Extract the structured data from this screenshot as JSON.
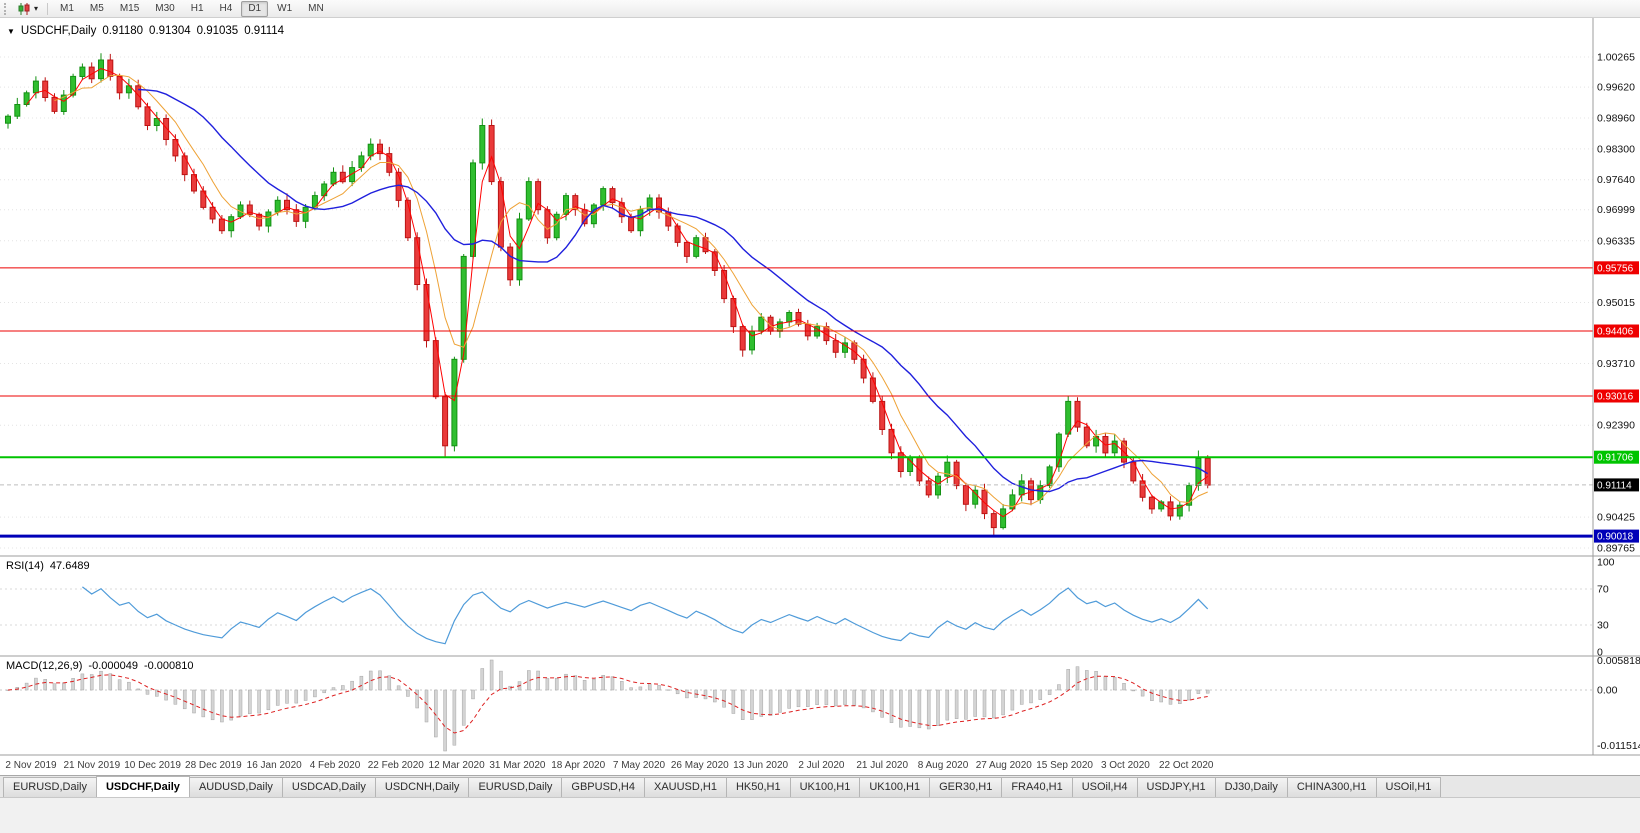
{
  "toolbar": {
    "dropdown_caret": "▾",
    "timeframes": [
      "M1",
      "M5",
      "M15",
      "M30",
      "H1",
      "H4",
      "D1",
      "W1",
      "MN"
    ],
    "active_timeframe": "D1"
  },
  "chart": {
    "title": {
      "collapse_icon": "▼",
      "symbol": "USDCHF,Daily",
      "open": "0.91180",
      "high": "0.91304",
      "low": "0.91035",
      "close": "0.91114"
    },
    "price_axis_ticks": [
      {
        "label": "1.00265",
        "price": 1.00265
      },
      {
        "label": "0.99620",
        "price": 0.9962
      },
      {
        "label": "0.98960",
        "price": 0.9896
      },
      {
        "label": "0.98300",
        "price": 0.983
      },
      {
        "label": "0.97640",
        "price": 0.9764
      },
      {
        "label": "0.96999",
        "price": 0.96999
      },
      {
        "label": "0.96335",
        "price": 0.96335
      },
      {
        "label": "0.95015",
        "price": 0.95015
      },
      {
        "label": "0.93710",
        "price": 0.9371
      },
      {
        "label": "0.92390",
        "price": 0.9239
      },
      {
        "label": "0.90425",
        "price": 0.90425
      },
      {
        "label": "0.89765",
        "price": 0.89765
      }
    ],
    "levels": [
      {
        "label": "0.95756",
        "price": 0.95756,
        "color": "#ee0000",
        "thickness": 1
      },
      {
        "label": "0.94406",
        "price": 0.94406,
        "color": "#ee0000",
        "thickness": 1
      },
      {
        "label": "0.93016",
        "price": 0.93016,
        "color": "#ee0000",
        "thickness": 1
      },
      {
        "label": "0.91706",
        "price": 0.91706,
        "color": "#00c400",
        "thickness": 2
      },
      {
        "label": "0.90018",
        "price": 0.90018,
        "color": "#0000b8",
        "thickness": 3
      }
    ],
    "current_price": {
      "label": "0.91114",
      "price": 0.91114
    },
    "date_labels": [
      "2 Nov 2019",
      "21 Nov 2019",
      "10 Dec 2019",
      "28 Dec 2019",
      "16 Jan 2020",
      "4 Feb 2020",
      "22 Feb 2020",
      "12 Mar 2020",
      "31 Mar 2020",
      "18 Apr 2020",
      "7 May 2020",
      "26 May 2020",
      "13 Jun 2020",
      "2 Jul 2020",
      "21 Jul 2020",
      "8 Aug 2020",
      "27 Aug 2020",
      "15 Sep 2020",
      "3 Oct 2020",
      "22 Oct 2020"
    ]
  },
  "indicators": {
    "rsi": {
      "name": "RSI(14)",
      "value": "47.6489",
      "axis_labels": [
        "100",
        "70",
        "30",
        "0"
      ],
      "axis_values": [
        100,
        70,
        30,
        0
      ],
      "line_color": "#4f9bd9"
    },
    "macd": {
      "name": "MACD(12,26,9)",
      "value_main": "-0.000049",
      "value_signal": "-0.000810",
      "axis_labels": [
        "0.005818",
        "0.00",
        "-0.011514"
      ],
      "axis_values": [
        0.005818,
        0,
        -0.011514
      ]
    }
  },
  "tabs": {
    "active_index": 1,
    "items": [
      "EURUSD,Daily",
      "USDCHF,Daily",
      "AUDUSD,Daily",
      "USDCAD,Daily",
      "USDCNH,Daily",
      "EURUSD,Daily",
      "GBPUSD,H4",
      "XAUUSD,H1",
      "HK50,H1",
      "UK100,H1",
      "UK100,H1",
      "GER30,H1",
      "FRA40,H1",
      "USOil,H4",
      "USDJPY,H1",
      "DJ30,Daily",
      "CHINA300,H1",
      "USOil,H1"
    ]
  },
  "chart_data": {
    "type": "candlestick",
    "symbol": "USDCHF",
    "period": "Daily",
    "ohlc": {
      "open": 0.9118,
      "high": 0.91304,
      "low": 0.91035,
      "close": 0.91114
    },
    "x_range": [
      "2 Nov 2019",
      "22 Oct 2020"
    ],
    "y_axis_range": [
      0.89765,
      1.00265
    ],
    "horizontal_levels": [
      0.95756,
      0.94406,
      0.93016,
      0.91706,
      0.90018
    ],
    "moving_average_colors": [
      "#ff0000",
      "#eea236",
      "#2020dd"
    ],
    "closes": [
      0.99,
      0.9925,
      0.995,
      0.9975,
      0.994,
      0.991,
      0.9945,
      0.9985,
      1.0005,
      0.998,
      1.002,
      0.9985,
      0.995,
      0.9965,
      0.992,
      0.988,
      0.9895,
      0.985,
      0.9815,
      0.9775,
      0.974,
      0.9705,
      0.968,
      0.9655,
      0.9685,
      0.971,
      0.969,
      0.9665,
      0.9695,
      0.972,
      0.97,
      0.9675,
      0.9705,
      0.973,
      0.9755,
      0.978,
      0.976,
      0.979,
      0.9815,
      0.984,
      0.982,
      0.978,
      0.972,
      0.964,
      0.954,
      0.942,
      0.93,
      0.9195,
      0.938,
      0.96,
      0.98,
      0.988,
      0.976,
      0.962,
      0.955,
      0.968,
      0.976,
      0.97,
      0.964,
      0.969,
      0.973,
      0.97,
      0.967,
      0.971,
      0.9745,
      0.9715,
      0.9685,
      0.9655,
      0.97,
      0.9725,
      0.9695,
      0.9665,
      0.963,
      0.96,
      0.964,
      0.961,
      0.957,
      0.951,
      0.945,
      0.94,
      0.944,
      0.947,
      0.944,
      0.946,
      0.948,
      0.9455,
      0.943,
      0.945,
      0.942,
      0.9395,
      0.9415,
      0.938,
      0.934,
      0.929,
      0.923,
      0.918,
      0.914,
      0.917,
      0.912,
      0.909,
      0.913,
      0.916,
      0.911,
      0.907,
      0.91,
      0.905,
      0.902,
      0.906,
      0.909,
      0.912,
      0.908,
      0.911,
      0.915,
      0.922,
      0.929,
      0.9235,
      0.9195,
      0.9215,
      0.918,
      0.9205,
      0.916,
      0.912,
      0.9085,
      0.906,
      0.9075,
      0.9045,
      0.9068,
      0.911,
      0.9168,
      0.9111
    ],
    "wick_high_overrides": {
      "10": 1.0028,
      "51": 0.9895,
      "114": 0.9302,
      "128": 0.9185
    },
    "wick_low_overrides": {
      "47": 0.9172,
      "106": 0.9002,
      "125": 0.9038
    }
  }
}
